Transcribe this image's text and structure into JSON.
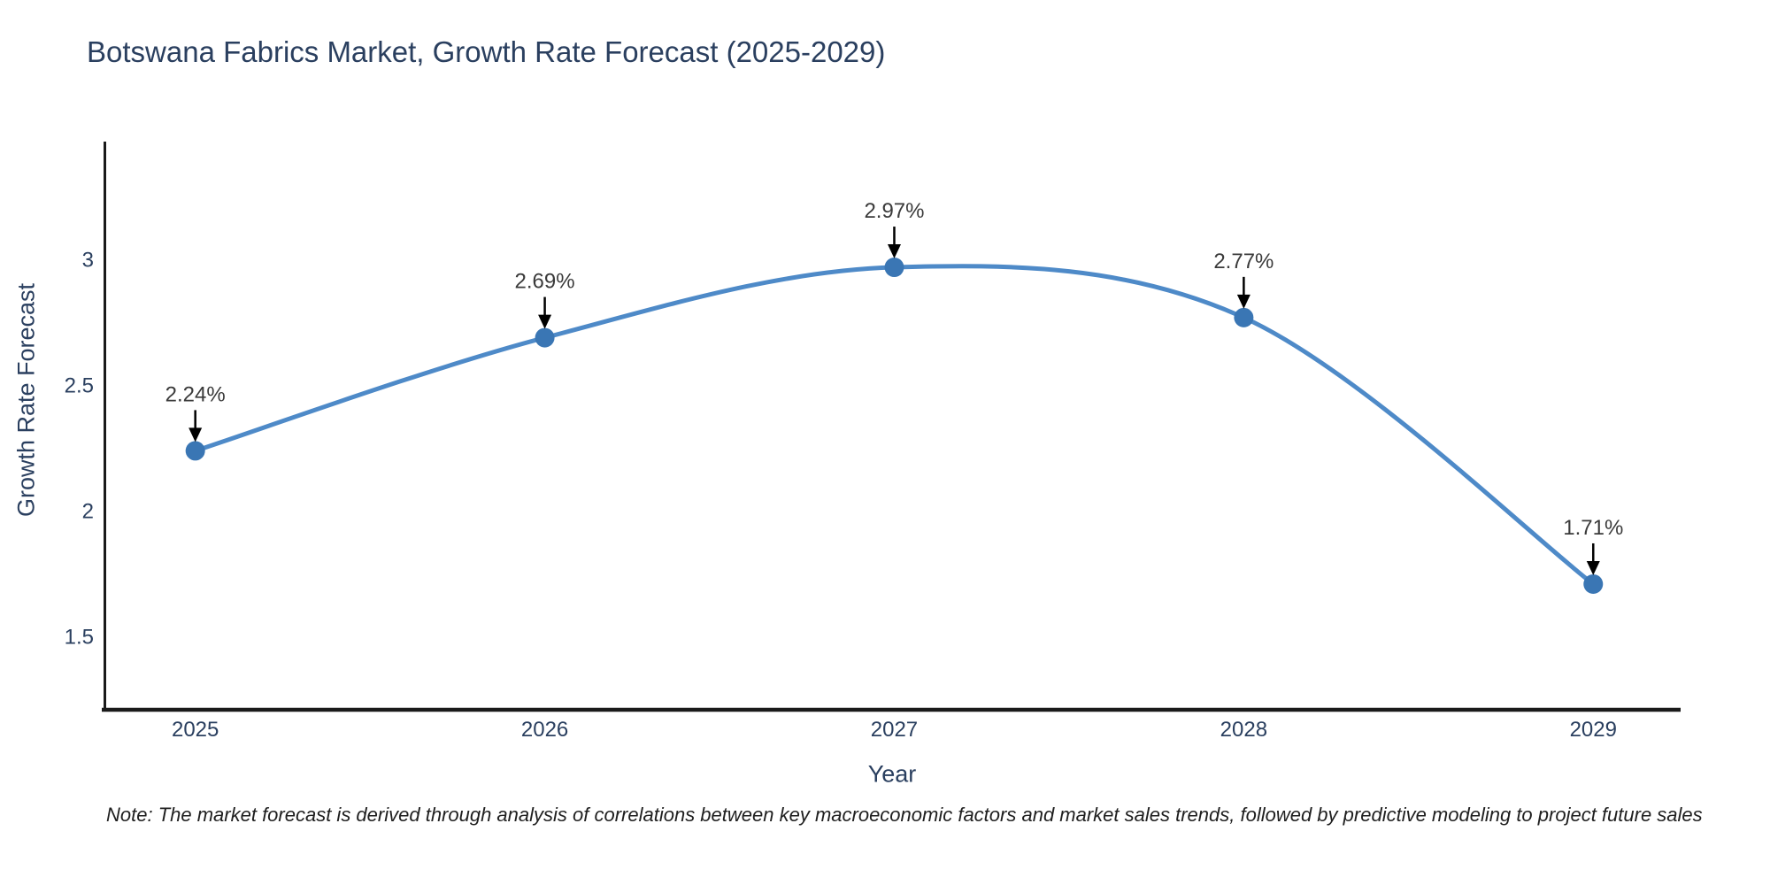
{
  "chart": {
    "title": "Botswana Fabrics Market, Growth Rate Forecast (2025-2029)",
    "xlabel": "Year",
    "ylabel": "Growth Rate Forecast",
    "note": "Note: The market forecast is derived through analysis of correlations between key macroeconomic factors and market sales trends, followed by predictive modeling to project future sales"
  },
  "chart_data": {
    "type": "line",
    "title": "Botswana Fabrics Market, Growth Rate Forecast (2025-2029)",
    "xlabel": "Year",
    "ylabel": "Growth Rate Forecast",
    "x": [
      2025,
      2026,
      2027,
      2028,
      2029
    ],
    "series": [
      {
        "name": "Growth Rate Forecast",
        "values": [
          2.24,
          2.69,
          2.97,
          2.77,
          1.71
        ]
      }
    ],
    "point_labels": [
      "2.24%",
      "2.69%",
      "2.97%",
      "2.77%",
      "1.71%"
    ],
    "x_ticks": [
      "2025",
      "2026",
      "2027",
      "2028",
      "2029"
    ],
    "y_ticks": [
      3,
      2.5,
      2,
      1.5
    ],
    "x_range": [
      2024.74,
      2029.25
    ],
    "y_range": [
      1.21,
      3.47
    ],
    "line_shape": "spline",
    "grid": false,
    "legend": "none",
    "colors": {
      "line": "#4e8ac8",
      "marker": "#3a76b4",
      "arrow": "#000000",
      "point_label": "#3a3a3a",
      "axis_line": "#1a1a1a",
      "text": "#2a3f5f"
    }
  }
}
